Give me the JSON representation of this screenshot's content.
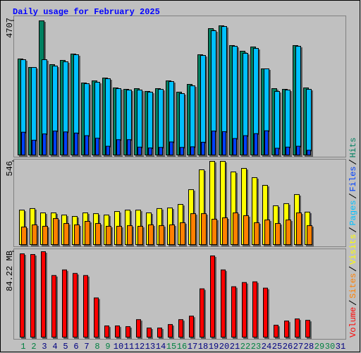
{
  "chart_data": [
    {
      "type": "bar",
      "title": "Daily usage for February 2025",
      "ylim": [
        0,
        4707
      ],
      "yticks": [
        4707
      ],
      "series": [
        {
          "name": "Hits",
          "color": "#008060",
          "values": [
            3376,
            3080,
            4707,
            3179,
            3327,
            3548,
            2538,
            2612,
            2711,
            2366,
            2316,
            2341,
            2243,
            2341,
            2612,
            2218,
            2489,
            3524,
            4436,
            4534,
            3844,
            3647,
            3795,
            3031,
            2341,
            2316,
            3844,
            2366,
            null,
            null,
            null
          ]
        },
        {
          "name": "Files",
          "color": "#0040ff",
          "values": [
            820,
            540,
            760,
            860,
            830,
            790,
            700,
            610,
            330,
            560,
            560,
            300,
            270,
            290,
            480,
            290,
            310,
            470,
            860,
            840,
            600,
            700,
            770,
            870,
            260,
            300,
            330,
            190,
            null,
            null,
            null
          ]
        },
        {
          "name": "Pages",
          "color": "#00c0ff",
          "values": [
            3351,
            3080,
            3351,
            3129,
            3277,
            3524,
            2513,
            2563,
            2686,
            2341,
            2292,
            2292,
            2218,
            2316,
            2587,
            2168,
            2439,
            3499,
            4362,
            4510,
            3819,
            3573,
            3745,
            3031,
            2242,
            2292,
            3819,
            2316,
            null,
            null,
            null
          ]
        }
      ]
    },
    {
      "type": "bar",
      "ylim": [
        0,
        546
      ],
      "yticks": [
        546
      ],
      "series": [
        {
          "name": "Visits",
          "color": "#ffff00",
          "values": [
            229,
            239,
            211,
            211,
            197,
            188,
            211,
            206,
            197,
            220,
            229,
            229,
            211,
            239,
            243,
            266,
            362,
            491,
            546,
            546,
            477,
            500,
            440,
            390,
            257,
            271,
            330,
            216,
            null,
            null,
            null
          ]
        },
        {
          "name": "Sites",
          "color": "#ff8000",
          "values": [
            119,
            133,
            124,
            174,
            142,
            133,
            156,
            142,
            124,
            124,
            128,
            124,
            133,
            128,
            133,
            147,
            206,
            206,
            170,
            179,
            211,
            193,
            147,
            165,
            142,
            165,
            211,
            128,
            null,
            null,
            null
          ]
        }
      ]
    },
    {
      "type": "bar",
      "ylim": [
        0,
        84.22
      ],
      "yticks": [
        {
          "value": 84.22,
          "label": "84.22 MB"
        }
      ],
      "categories": [
        "1",
        "2",
        "3",
        "4",
        "5",
        "6",
        "7",
        "8",
        "9",
        "10",
        "11",
        "12",
        "13",
        "14",
        "15",
        "16",
        "17",
        "18",
        "19",
        "20",
        "21",
        "22",
        "23",
        "24",
        "25",
        "26",
        "27",
        "28",
        "29",
        "30",
        "31"
      ],
      "label_colors": [
        "#008040",
        "#008040",
        "#000080",
        "#000080",
        "#000080",
        "#000080",
        "#000080",
        "#008040",
        "#008040",
        "#000080",
        "#000080",
        "#000080",
        "#000080",
        "#000080",
        "#008040",
        "#008040",
        "#000080",
        "#000080",
        "#000080",
        "#000080",
        "#000080",
        "#008040",
        "#008040",
        "#000080",
        "#000080",
        "#000080",
        "#000080",
        "#000080",
        "#008040",
        "#008040",
        "#000080"
      ],
      "series": [
        {
          "name": "Volume",
          "color": "#ff0000",
          "values": [
            82.16,
            81.48,
            84.22,
            60.94,
            66.42,
            62.99,
            60.94,
            39.03,
            11.64,
            11.64,
            10.96,
            17.8,
            9.59,
            9.59,
            13.01,
            17.8,
            21.23,
            47.93,
            80.11,
            66.42,
            49.98,
            54.09,
            54.78,
            48.61,
            12.32,
            16.43,
            18.49,
            17.12,
            null,
            null,
            null
          ]
        }
      ]
    }
  ]
}
